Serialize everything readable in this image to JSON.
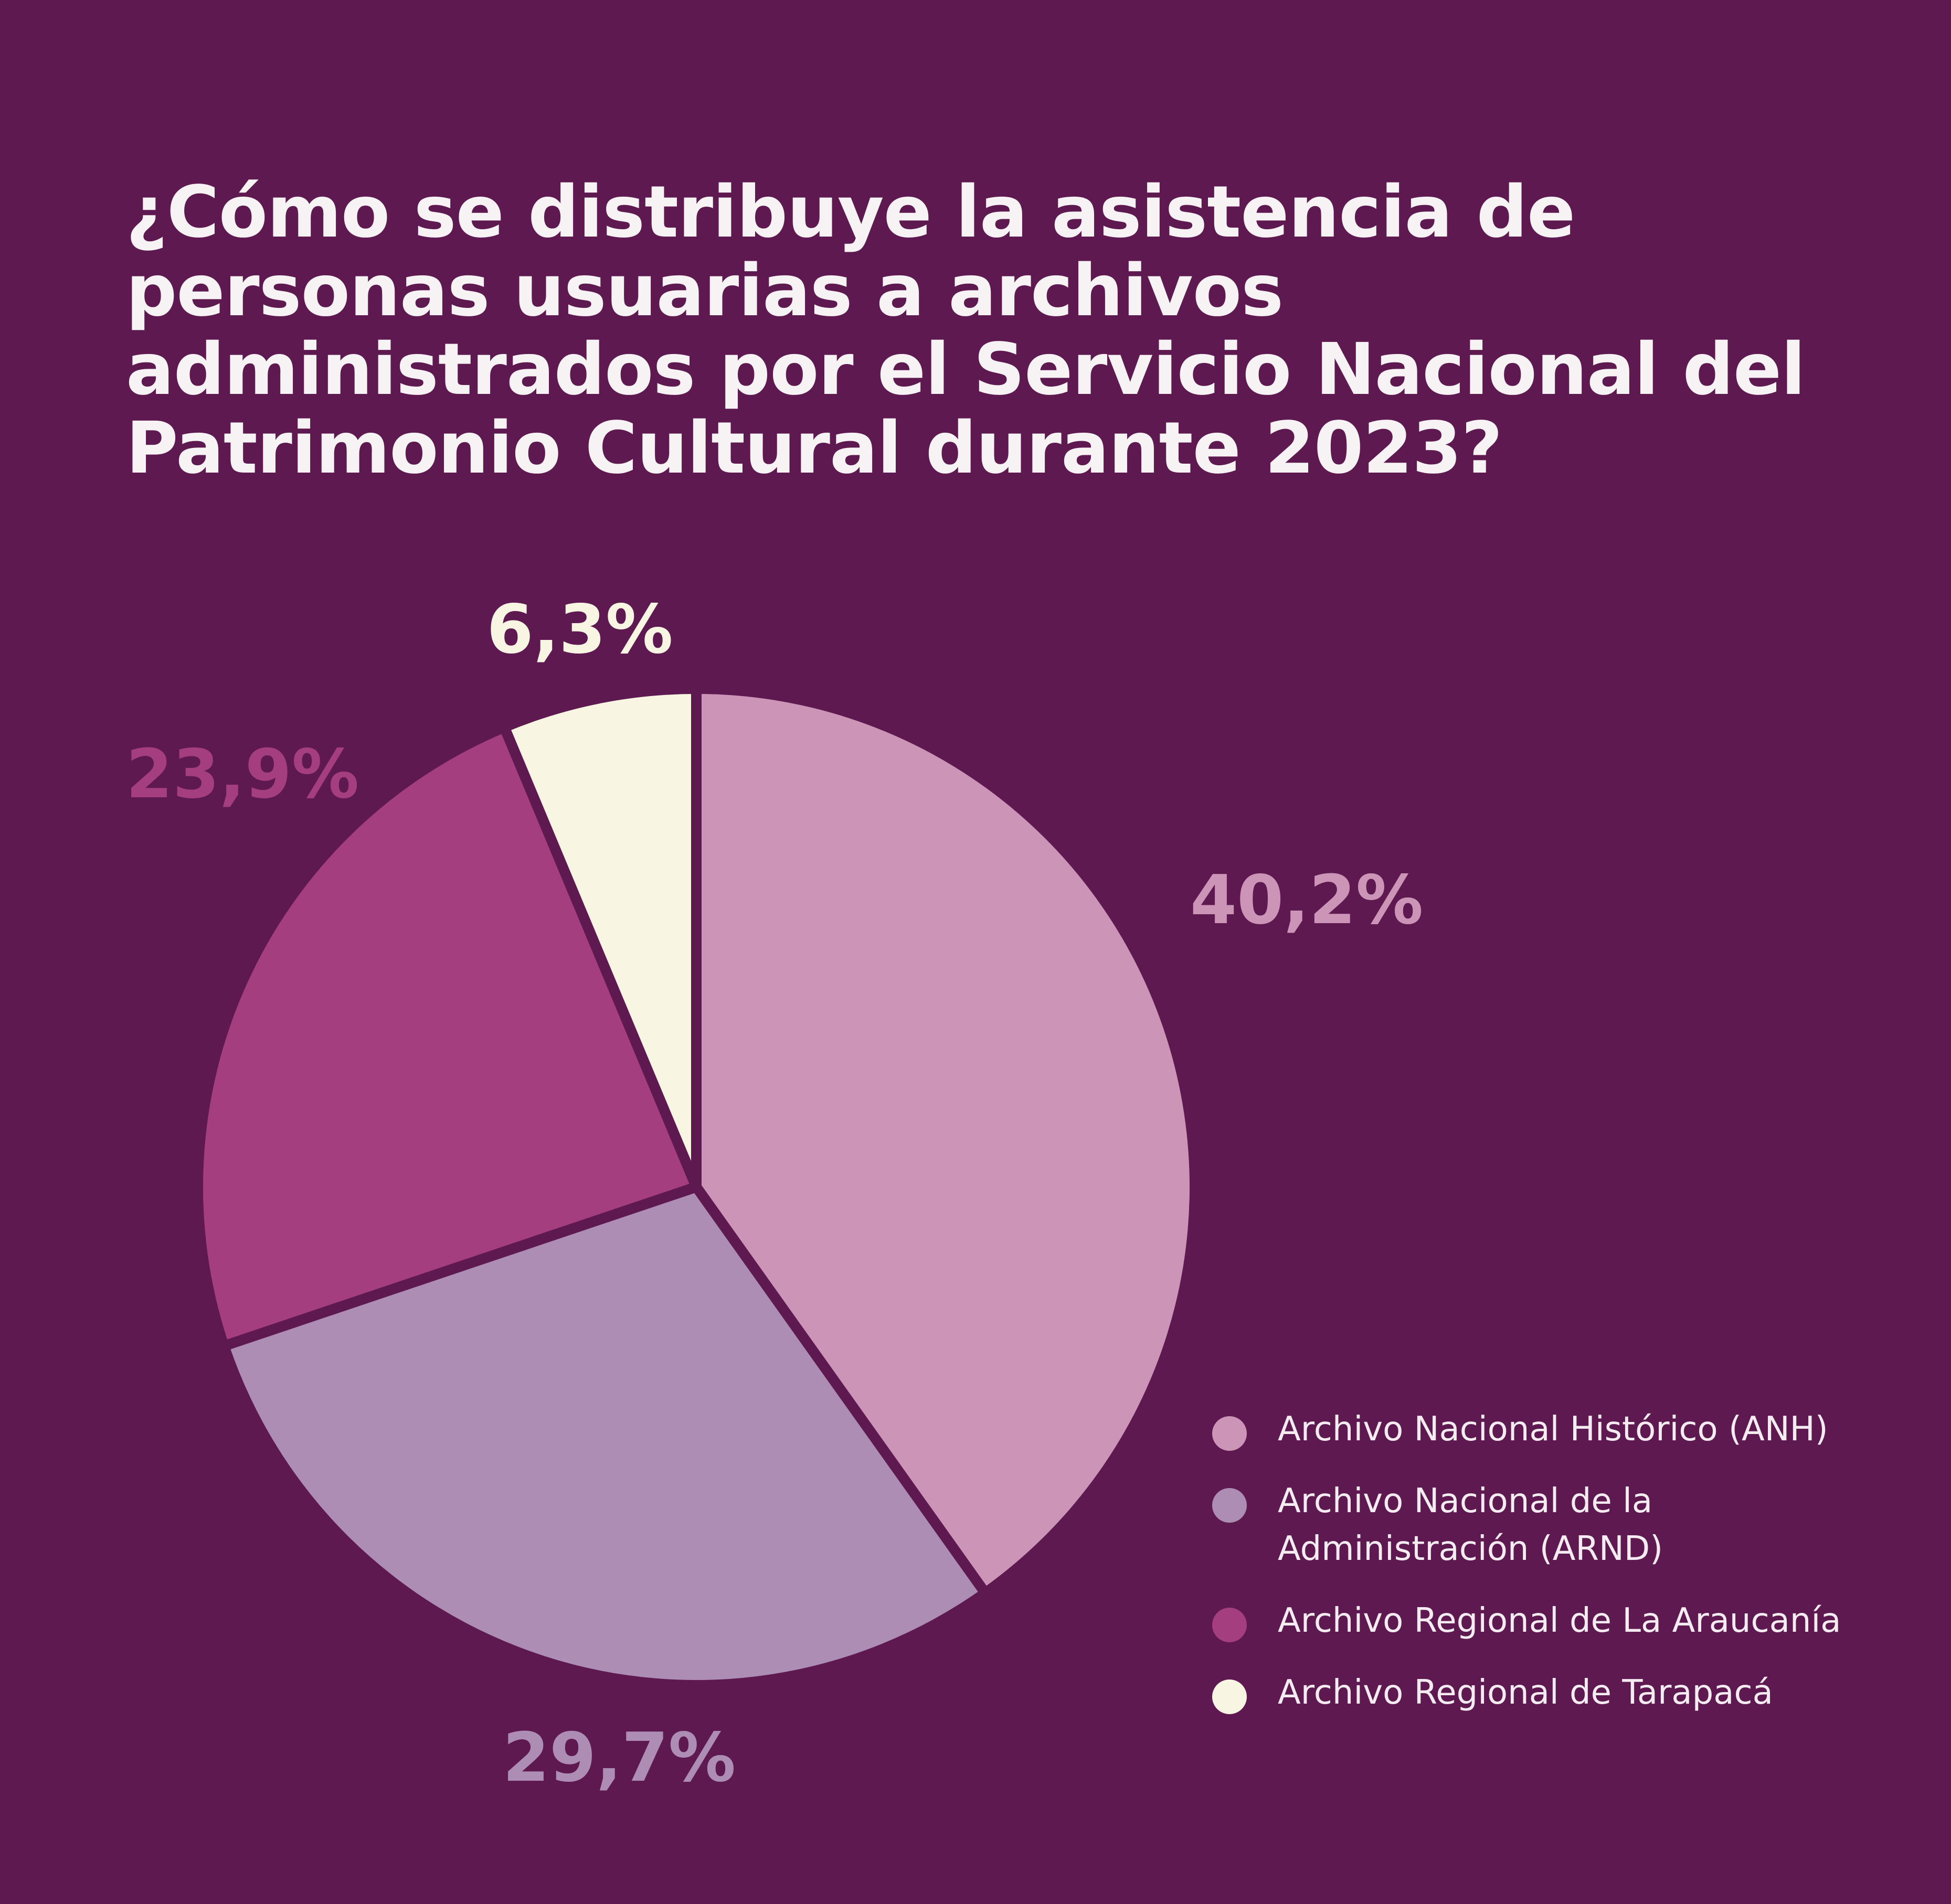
{
  "chart_data": {
    "type": "pie",
    "title_lines": [
      "¿Cómo se distribuye la asistencia de",
      "personas usuarias a archivos",
      "administrados por el Servicio Nacional del",
      "Patrimonio Cultural durante 2023?"
    ],
    "slices": [
      {
        "label": "Archivo Nacional Histórico (ANH)",
        "value": 40.2,
        "display": "40,2%",
        "color": "#cc95b8"
      },
      {
        "label": "Archivo Nacional de la Administración (ARND)",
        "label_lines": [
          "Archivo Nacional de la",
          "Administración (ARND)"
        ],
        "value": 29.7,
        "display": "29,7%",
        "color": "#ae8db4"
      },
      {
        "label": "Archivo Regional de La Araucanía",
        "value": 23.9,
        "display": "23,9%",
        "color": "#a53e7f"
      },
      {
        "label": "Archivo Regional de Tarapacá",
        "value": 6.3,
        "display": "6,3%",
        "color": "#f8f6e3"
      }
    ],
    "start": "12 o'clock",
    "direction": "clockwise",
    "legend_position": "bottom-right"
  },
  "colors": {
    "background": "#5e1a50",
    "title": "#f7f2f3",
    "legend_text": "#f4ecf1"
  }
}
